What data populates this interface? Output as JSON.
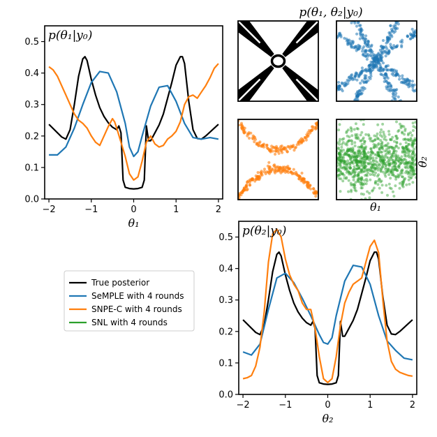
{
  "colors": {
    "true_posterior": "#000000",
    "semple": "#1f77b4",
    "snpe": "#ff7f0e",
    "snl": "#2ca02c"
  },
  "chart_data": [
    {
      "type": "line",
      "id": "marginal-theta1",
      "title": "p(θ₁|y₀)",
      "xlabel": "θ₁",
      "ylabel": "",
      "xlim": [
        -2.1,
        2.1
      ],
      "ylim": [
        0.0,
        0.55
      ],
      "xticks": [
        "−2",
        "−1",
        "0",
        "1",
        "2"
      ],
      "yticks": [
        "0.0",
        "0.1",
        "0.2",
        "0.3",
        "0.4",
        "0.5"
      ],
      "series": [
        {
          "name": "True posterior",
          "color": "#000000",
          "x": [
            -2.0,
            -1.7,
            -1.6,
            -1.5,
            -1.4,
            -1.3,
            -1.2,
            -1.15,
            -1.1,
            -1.0,
            -0.9,
            -0.8,
            -0.7,
            -0.6,
            -0.5,
            -0.4,
            -0.35,
            -0.3,
            -0.25,
            -0.2,
            -0.1,
            0.0,
            0.1,
            0.2,
            0.25,
            0.3,
            0.35,
            0.4,
            0.5,
            0.6,
            0.7,
            0.8,
            0.9,
            1.0,
            1.1,
            1.15,
            1.2,
            1.3,
            1.4,
            1.5,
            1.6,
            1.7,
            2.0
          ],
          "y": [
            0.237,
            0.197,
            0.19,
            0.22,
            0.3,
            0.39,
            0.445,
            0.452,
            0.44,
            0.38,
            0.33,
            0.29,
            0.262,
            0.242,
            0.228,
            0.22,
            0.232,
            0.21,
            0.06,
            0.037,
            0.033,
            0.032,
            0.033,
            0.037,
            0.06,
            0.232,
            0.185,
            0.185,
            0.21,
            0.235,
            0.27,
            0.32,
            0.37,
            0.425,
            0.452,
            0.452,
            0.43,
            0.31,
            0.22,
            0.192,
            0.19,
            0.2,
            0.237
          ]
        },
        {
          "name": "SeMPLE with 4 rounds",
          "color": "#1f77b4",
          "x": [
            -2.0,
            -1.8,
            -1.6,
            -1.4,
            -1.2,
            -1.0,
            -0.8,
            -0.6,
            -0.4,
            -0.2,
            -0.1,
            0.0,
            0.1,
            0.2,
            0.4,
            0.6,
            0.8,
            1.0,
            1.2,
            1.4,
            1.6,
            1.8,
            2.0
          ],
          "y": [
            0.14,
            0.14,
            0.165,
            0.225,
            0.3,
            0.37,
            0.405,
            0.4,
            0.34,
            0.24,
            0.165,
            0.135,
            0.15,
            0.2,
            0.295,
            0.355,
            0.36,
            0.31,
            0.24,
            0.195,
            0.19,
            0.195,
            0.19
          ]
        },
        {
          "name": "SNPE-C with 4 rounds",
          "color": "#ff7f0e",
          "x": [
            -2.0,
            -1.9,
            -1.8,
            -1.7,
            -1.6,
            -1.5,
            -1.4,
            -1.3,
            -1.2,
            -1.1,
            -1.0,
            -0.9,
            -0.8,
            -0.7,
            -0.6,
            -0.5,
            -0.45,
            -0.4,
            -0.3,
            -0.2,
            -0.1,
            0.0,
            0.1,
            0.2,
            0.3,
            0.4,
            0.5,
            0.6,
            0.7,
            0.8,
            0.9,
            1.0,
            1.1,
            1.2,
            1.3,
            1.4,
            1.5,
            1.6,
            1.7,
            1.8,
            1.9,
            2.0
          ],
          "y": [
            0.42,
            0.41,
            0.39,
            0.36,
            0.33,
            0.3,
            0.27,
            0.25,
            0.24,
            0.225,
            0.2,
            0.18,
            0.17,
            0.2,
            0.23,
            0.255,
            0.245,
            0.225,
            0.18,
            0.135,
            0.08,
            0.06,
            0.07,
            0.12,
            0.18,
            0.2,
            0.175,
            0.165,
            0.17,
            0.19,
            0.2,
            0.215,
            0.245,
            0.3,
            0.325,
            0.33,
            0.32,
            0.34,
            0.36,
            0.385,
            0.415,
            0.43
          ]
        }
      ]
    },
    {
      "type": "scatter",
      "id": "joint-posterior",
      "title": "p(θ₁, θ₂|y₀)",
      "xlabel": "θ₁",
      "ylabel": "θ₂",
      "panels": [
        {
          "name": "True posterior",
          "color": "#000000",
          "style": "x-shaped density with central ring"
        },
        {
          "name": "SeMPLE with 4 rounds",
          "color": "#1f77b4",
          "style": "x-shaped samples"
        },
        {
          "name": "SNPE-C with 4 rounds",
          "color": "#ff7f0e",
          "style": "hyperbolic arcs"
        },
        {
          "name": "SNL with 4 rounds",
          "color": "#2ca02c",
          "style": "diffuse blob"
        }
      ]
    },
    {
      "type": "line",
      "id": "marginal-theta2",
      "title": "p(θ₂|y₀)",
      "xlabel": "θ₂",
      "ylabel": "",
      "xlim": [
        -2.1,
        2.1
      ],
      "ylim": [
        0.0,
        0.55
      ],
      "xticks": [
        "−2",
        "−1",
        "0",
        "1",
        "2"
      ],
      "yticks": [
        "0.0",
        "0.1",
        "0.2",
        "0.3",
        "0.4",
        "0.5"
      ],
      "series": [
        {
          "name": "True posterior",
          "color": "#000000",
          "x": [
            -2.0,
            -1.7,
            -1.6,
            -1.5,
            -1.4,
            -1.3,
            -1.2,
            -1.15,
            -1.1,
            -1.0,
            -0.9,
            -0.8,
            -0.7,
            -0.6,
            -0.5,
            -0.4,
            -0.35,
            -0.3,
            -0.25,
            -0.2,
            -0.1,
            0.0,
            0.1,
            0.2,
            0.25,
            0.3,
            0.35,
            0.4,
            0.5,
            0.6,
            0.7,
            0.8,
            0.9,
            1.0,
            1.1,
            1.15,
            1.2,
            1.3,
            1.4,
            1.5,
            1.6,
            1.7,
            2.0
          ],
          "y": [
            0.237,
            0.197,
            0.19,
            0.22,
            0.3,
            0.39,
            0.445,
            0.452,
            0.44,
            0.38,
            0.33,
            0.29,
            0.262,
            0.242,
            0.228,
            0.22,
            0.232,
            0.21,
            0.06,
            0.037,
            0.033,
            0.032,
            0.033,
            0.037,
            0.06,
            0.232,
            0.185,
            0.185,
            0.21,
            0.235,
            0.27,
            0.32,
            0.37,
            0.425,
            0.452,
            0.452,
            0.43,
            0.31,
            0.22,
            0.192,
            0.19,
            0.2,
            0.237
          ]
        },
        {
          "name": "SeMPLE with 4 rounds",
          "color": "#1f77b4",
          "x": [
            -2.0,
            -1.8,
            -1.6,
            -1.4,
            -1.2,
            -1.0,
            -0.8,
            -0.6,
            -0.4,
            -0.2,
            -0.1,
            0.0,
            0.1,
            0.2,
            0.4,
            0.6,
            0.8,
            1.0,
            1.2,
            1.4,
            1.6,
            1.8,
            2.0
          ],
          "y": [
            0.135,
            0.125,
            0.16,
            0.27,
            0.37,
            0.385,
            0.355,
            0.305,
            0.25,
            0.19,
            0.165,
            0.16,
            0.18,
            0.25,
            0.36,
            0.41,
            0.405,
            0.35,
            0.25,
            0.17,
            0.14,
            0.115,
            0.11
          ]
        },
        {
          "name": "SNPE-C with 4 rounds",
          "color": "#ff7f0e",
          "x": [
            -2.0,
            -1.9,
            -1.8,
            -1.7,
            -1.6,
            -1.5,
            -1.4,
            -1.3,
            -1.2,
            -1.1,
            -1.0,
            -0.9,
            -0.8,
            -0.7,
            -0.6,
            -0.5,
            -0.4,
            -0.3,
            -0.2,
            -0.1,
            0.0,
            0.1,
            0.2,
            0.3,
            0.4,
            0.5,
            0.6,
            0.7,
            0.8,
            0.9,
            1.0,
            1.1,
            1.2,
            1.3,
            1.4,
            1.5,
            1.6,
            1.7,
            1.8,
            1.9,
            2.0
          ],
          "y": [
            0.05,
            0.053,
            0.06,
            0.09,
            0.15,
            0.26,
            0.42,
            0.51,
            0.525,
            0.5,
            0.43,
            0.38,
            0.35,
            0.33,
            0.29,
            0.27,
            0.27,
            0.21,
            0.12,
            0.05,
            0.038,
            0.05,
            0.12,
            0.22,
            0.29,
            0.325,
            0.35,
            0.36,
            0.37,
            0.42,
            0.47,
            0.49,
            0.45,
            0.3,
            0.17,
            0.105,
            0.08,
            0.07,
            0.065,
            0.06,
            0.058
          ]
        }
      ]
    }
  ],
  "legend": {
    "placement": "middle-left",
    "items": [
      {
        "label": "True posterior",
        "color": "#000000"
      },
      {
        "label": "SeMPLE with 4 rounds",
        "color": "#1f77b4"
      },
      {
        "label": "SNPE-C with 4 rounds",
        "color": "#ff7f0e"
      },
      {
        "label": "SNL with 4 rounds",
        "color": "#2ca02c"
      }
    ]
  }
}
